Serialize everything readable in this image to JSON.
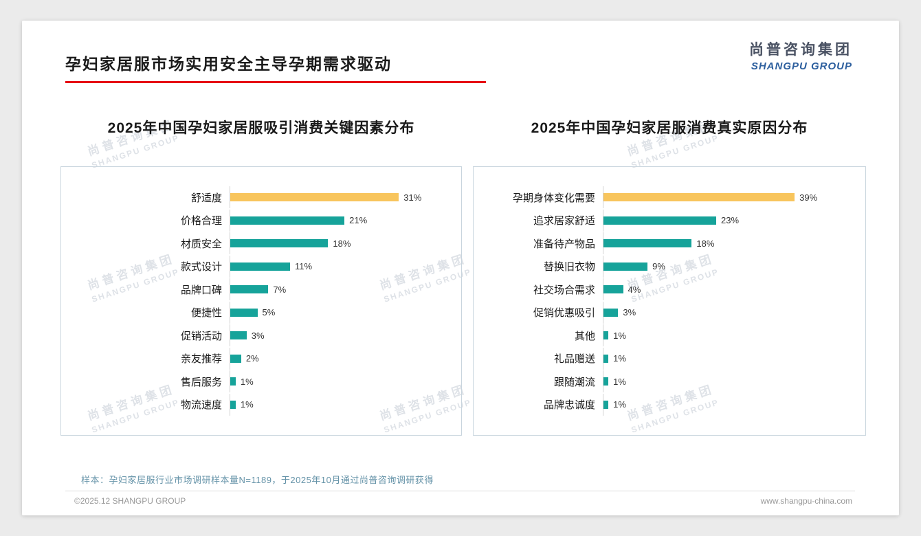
{
  "header": {
    "title": "孕妇家居服市场实用安全主导孕期需求驱动",
    "logo_cn": "尚普咨询集团",
    "logo_en": "SHANGPU GROUP"
  },
  "watermark": {
    "line1": "尚普咨询集团",
    "line2": "SHANGPU GROUP"
  },
  "colors": {
    "accent_red": "#e60012",
    "logo_blue": "#2d5f9e",
    "bar_teal": "#16a39a",
    "bar_gold": "#f8c55d",
    "footnote_blue": "#6593a8"
  },
  "chart_data": [
    {
      "type": "bar",
      "orientation": "horizontal",
      "title": "2025年中国孕妇家居服吸引消费关键因素分布",
      "categories": [
        "舒适度",
        "价格合理",
        "材质安全",
        "款式设计",
        "品牌口碑",
        "便捷性",
        "促销活动",
        "亲友推荐",
        "售后服务",
        "物流速度"
      ],
      "values": [
        31,
        21,
        18,
        11,
        7,
        5,
        3,
        2,
        1,
        1
      ],
      "unit": "%",
      "xlim": [
        0,
        40
      ],
      "grid": false,
      "legend": "none",
      "bar_color": "#16a39a",
      "highlight_color": "#f8c55d",
      "highlight_index": 0
    },
    {
      "type": "bar",
      "orientation": "horizontal",
      "title": "2025年中国孕妇家居服消费真实原因分布",
      "categories": [
        "孕期身体变化需要",
        "追求居家舒适",
        "准备待产物品",
        "替换旧衣物",
        "社交场合需求",
        "促销优惠吸引",
        "其他",
        "礼品赠送",
        "跟随潮流",
        "品牌忠诚度"
      ],
      "values": [
        39,
        23,
        18,
        9,
        4,
        3,
        1,
        1,
        1,
        1
      ],
      "unit": "%",
      "xlim": [
        0,
        50
      ],
      "grid": false,
      "legend": "none",
      "bar_color": "#16a39a",
      "highlight_color": "#f8c55d",
      "highlight_index": 0
    }
  ],
  "footer": {
    "note": "样本：孕妇家居服行业市场调研样本量N=1189，于2025年10月通过尚普咨询调研获得",
    "copyright": "©2025.12 SHANGPU GROUP",
    "website": "www.shangpu-china.com"
  }
}
